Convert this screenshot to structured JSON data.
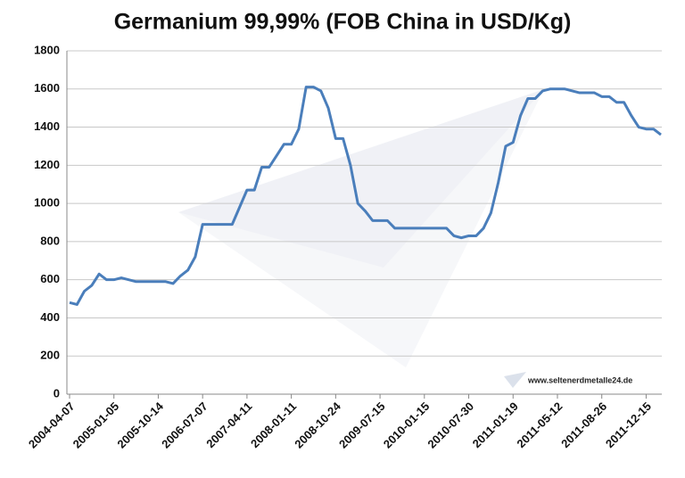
{
  "chart_data": {
    "type": "line",
    "title": "Germanium 99,99% (FOB China in USD/Kg)",
    "watermark": "www.seltenerdmetalle24.de",
    "categories": [
      "2004-04-07",
      null,
      null,
      null,
      null,
      null,
      "2005-01-05",
      null,
      null,
      null,
      null,
      null,
      "2005-10-14",
      null,
      null,
      null,
      null,
      null,
      "2006-07-07",
      null,
      null,
      null,
      null,
      null,
      "2007-04-11",
      null,
      null,
      null,
      null,
      null,
      "2008-01-11",
      null,
      null,
      null,
      null,
      null,
      "2008-10-24",
      null,
      null,
      null,
      null,
      null,
      "2009-07-15",
      null,
      null,
      null,
      null,
      null,
      "2010-01-15",
      null,
      null,
      null,
      null,
      null,
      "2010-07-30",
      null,
      null,
      null,
      null,
      null,
      "2011-01-19",
      null,
      null,
      null,
      null,
      null,
      "2011-05-12",
      null,
      null,
      null,
      null,
      null,
      "2011-08-26",
      null,
      null,
      null,
      null,
      null,
      "2011-12-15",
      null,
      null
    ],
    "series": [
      {
        "name": "Germanium",
        "color": "#4a7ebb",
        "values": [
          480,
          470,
          540,
          570,
          630,
          600,
          600,
          610,
          600,
          590,
          590,
          590,
          590,
          590,
          580,
          620,
          650,
          720,
          890,
          890,
          890,
          890,
          890,
          980,
          1070,
          1070,
          1190,
          1190,
          1250,
          1310,
          1310,
          1390,
          1610,
          1610,
          1590,
          1500,
          1340,
          1340,
          1200,
          1000,
          960,
          910,
          910,
          910,
          870,
          870,
          870,
          870,
          870,
          870,
          870,
          870,
          830,
          820,
          830,
          830,
          870,
          950,
          1110,
          1300,
          1320,
          1460,
          1550,
          1550,
          1590,
          1600,
          1600,
          1600,
          1590,
          1580,
          1580,
          1580,
          1560,
          1560,
          1530,
          1530,
          1460,
          1400,
          1390,
          1390,
          1360
        ]
      }
    ],
    "ylim": [
      0,
      1800
    ],
    "yticks": [
      0,
      200,
      400,
      600,
      800,
      1000,
      1200,
      1400,
      1600,
      1800
    ],
    "grid": true
  }
}
